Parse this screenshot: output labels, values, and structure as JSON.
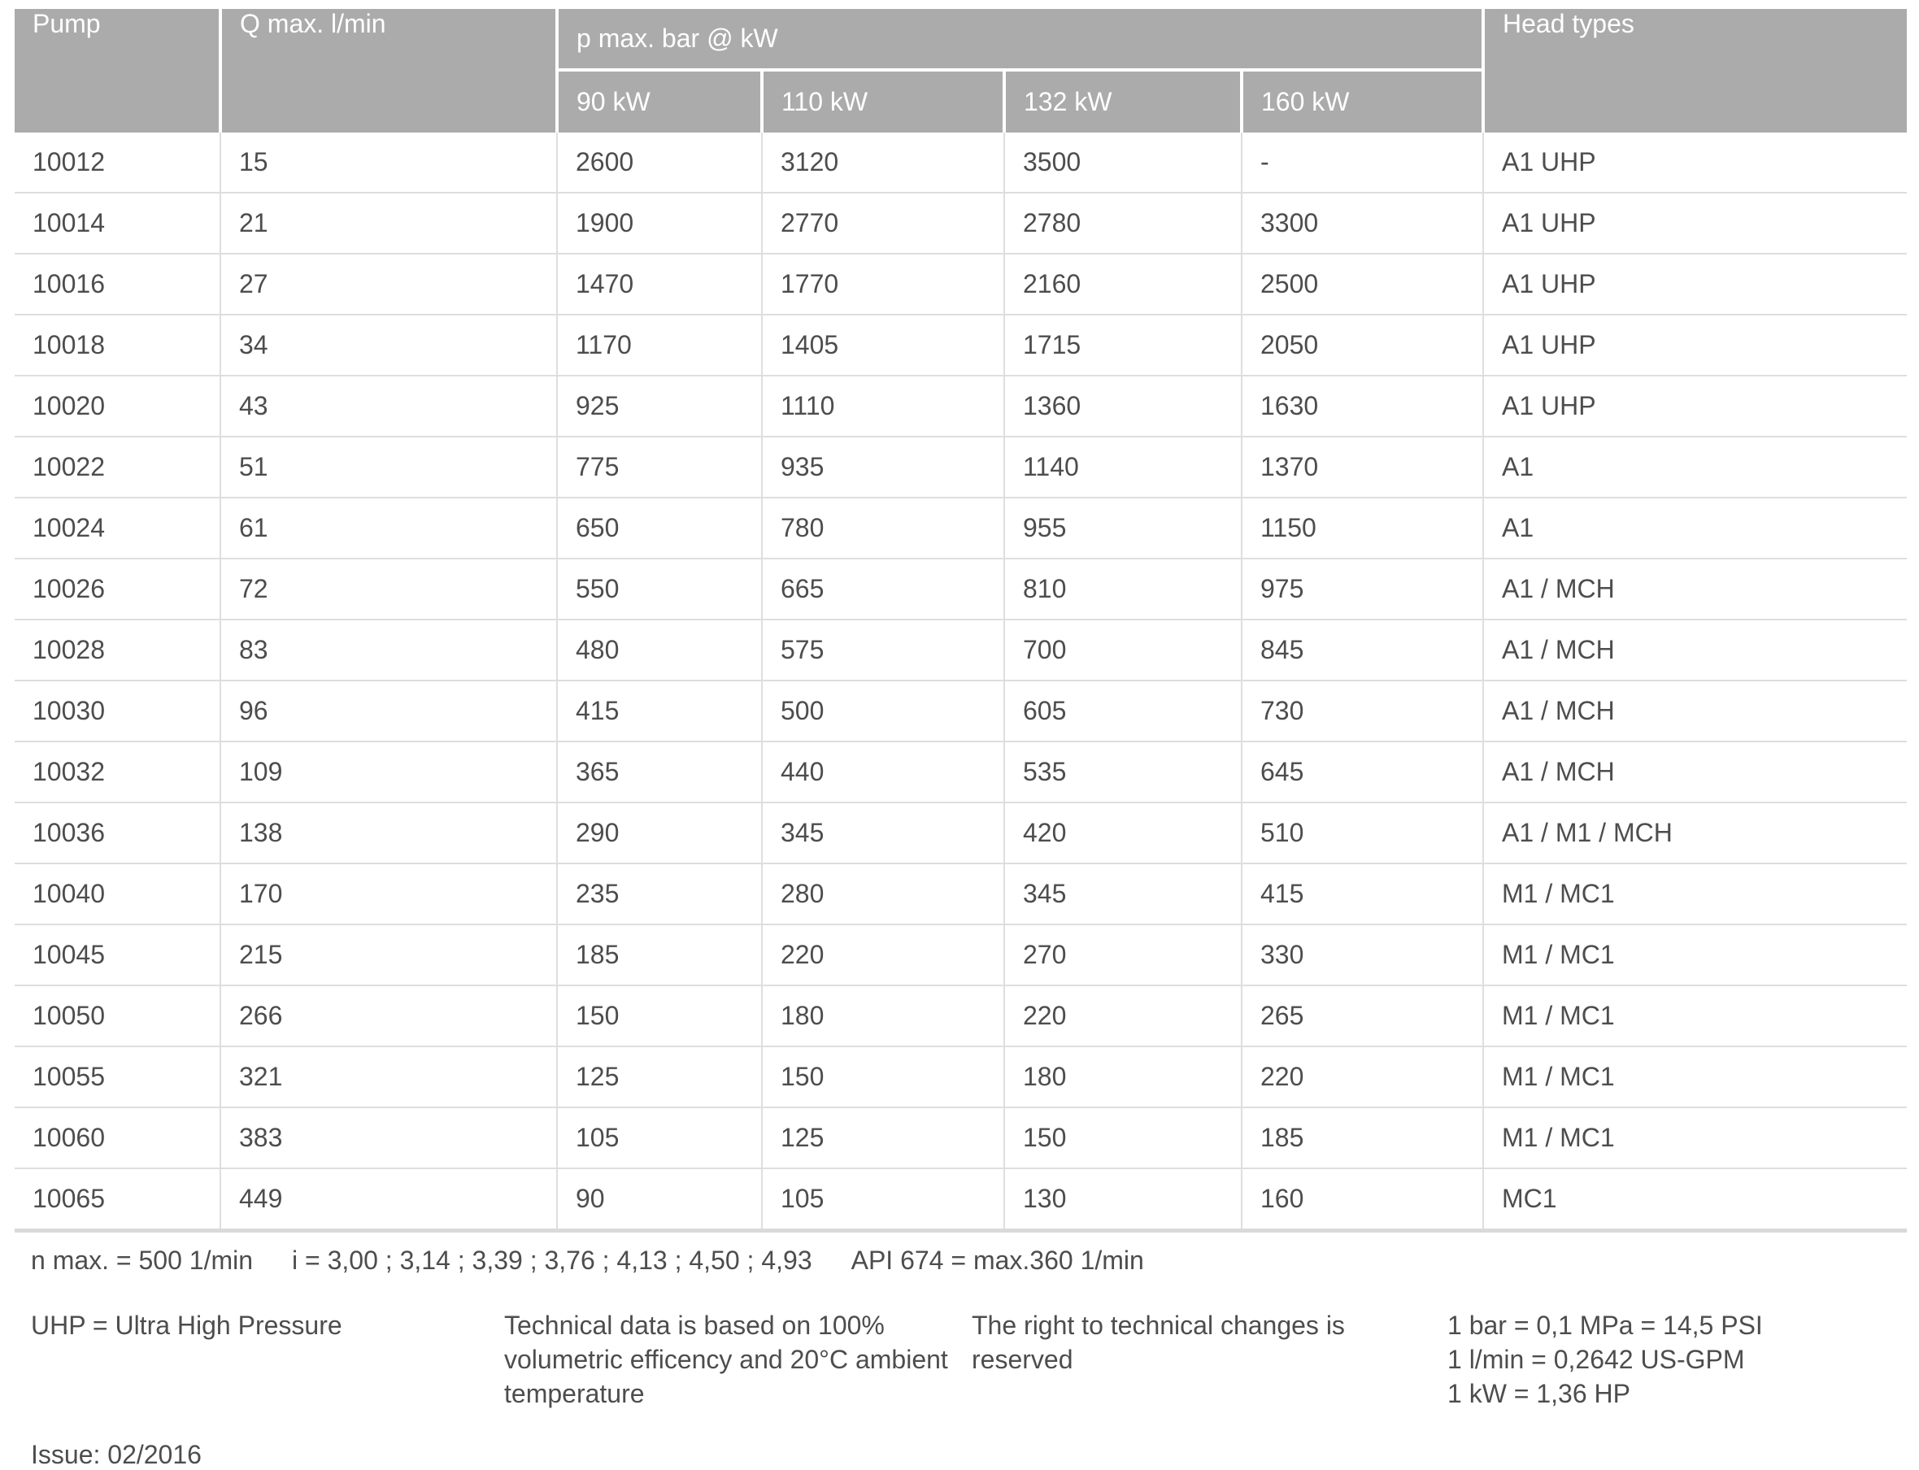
{
  "colors": {
    "header_bg": "#ababab",
    "header_text": "#ffffff",
    "body_text": "#4d4d4d",
    "grid_line": "#dedede",
    "bottom_rule": "#d9d9d9"
  },
  "table": {
    "col_pump": "Pump",
    "col_qmax": "Q max. l/min",
    "col_pmax_group": "p max. bar @ kW",
    "kw_cols": [
      "90 kW",
      "110 kW",
      "132 kW",
      "160 kW"
    ],
    "col_head_types": "Head types",
    "rows": [
      {
        "pump": "10012",
        "qmax": "15",
        "kw": [
          "2600",
          "3120",
          "3500",
          "-"
        ],
        "head": "A1 UHP"
      },
      {
        "pump": "10014",
        "qmax": "21",
        "kw": [
          "1900",
          "2770",
          "2780",
          "3300"
        ],
        "head": "A1 UHP"
      },
      {
        "pump": "10016",
        "qmax": "27",
        "kw": [
          "1470",
          "1770",
          "2160",
          "2500"
        ],
        "head": "A1 UHP"
      },
      {
        "pump": "10018",
        "qmax": "34",
        "kw": [
          "1170",
          "1405",
          "1715",
          "2050"
        ],
        "head": "A1 UHP"
      },
      {
        "pump": "10020",
        "qmax": "43",
        "kw": [
          "925",
          "1110",
          "1360",
          "1630"
        ],
        "head": "A1 UHP"
      },
      {
        "pump": "10022",
        "qmax": "51",
        "kw": [
          "775",
          "935",
          "1140",
          "1370"
        ],
        "head": "A1"
      },
      {
        "pump": "10024",
        "qmax": "61",
        "kw": [
          "650",
          "780",
          "955",
          "1150"
        ],
        "head": "A1"
      },
      {
        "pump": "10026",
        "qmax": "72",
        "kw": [
          "550",
          "665",
          "810",
          "975"
        ],
        "head": "A1 / MCH"
      },
      {
        "pump": "10028",
        "qmax": "83",
        "kw": [
          "480",
          "575",
          "700",
          "845"
        ],
        "head": "A1 / MCH"
      },
      {
        "pump": "10030",
        "qmax": "96",
        "kw": [
          "415",
          "500",
          "605",
          "730"
        ],
        "head": "A1 / MCH"
      },
      {
        "pump": "10032",
        "qmax": "109",
        "kw": [
          "365",
          "440",
          "535",
          "645"
        ],
        "head": "A1 / MCH"
      },
      {
        "pump": "10036",
        "qmax": "138",
        "kw": [
          "290",
          "345",
          "420",
          "510"
        ],
        "head": "A1 / M1 / MCH"
      },
      {
        "pump": "10040",
        "qmax": "170",
        "kw": [
          "235",
          "280",
          "345",
          "415"
        ],
        "head": "M1 / MC1"
      },
      {
        "pump": "10045",
        "qmax": "215",
        "kw": [
          "185",
          "220",
          "270",
          "330"
        ],
        "head": "M1 / MC1"
      },
      {
        "pump": "10050",
        "qmax": "266",
        "kw": [
          "150",
          "180",
          "220",
          "265"
        ],
        "head": "M1 / MC1"
      },
      {
        "pump": "10055",
        "qmax": "321",
        "kw": [
          "125",
          "150",
          "180",
          "220"
        ],
        "head": "M1 / MC1"
      },
      {
        "pump": "10060",
        "qmax": "383",
        "kw": [
          "105",
          "125",
          "150",
          "185"
        ],
        "head": "M1 / MC1"
      },
      {
        "pump": "10065",
        "qmax": "449",
        "kw": [
          "90",
          "105",
          "130",
          "160"
        ],
        "head": "MC1"
      }
    ]
  },
  "notes_line": {
    "n_max": "n max. = 500 1/min",
    "i_values": "i = 3,00 ; 3,14 ; 3,39 ; 3,76 ; 4,13 ; 4,50 ; 4,93",
    "api": "API 674 = max.360 1/min"
  },
  "footnotes": {
    "uhp": "UHP = Ultra High Pressure",
    "technical_lines": [
      "Technical data is based on 100%",
      "volumetric efficency and 20°C ambient",
      "temperature"
    ],
    "rights": "The right to technical changes is reserved",
    "conversions": [
      "1 bar = 0,1 MPa = 14,5 PSI",
      "1 l/min = 0,2642 US-GPM",
      "1 kW = 1,36 HP"
    ]
  },
  "issue": "Issue: 02/2016"
}
